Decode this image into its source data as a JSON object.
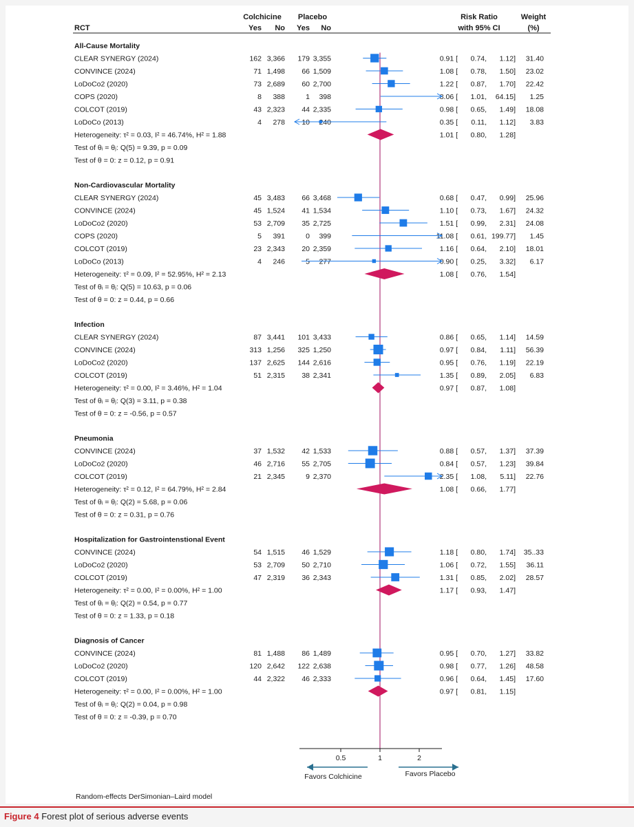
{
  "headers": {
    "rct": "RCT",
    "group_colchicine": "Colchicine",
    "group_placebo": "Placebo",
    "yes": "Yes",
    "no": "No",
    "rr_line1": "Risk Ratio",
    "rr_line2": "with 95% CI",
    "weight_line1": "Weight",
    "weight_line2": "(%)"
  },
  "figure_caption": {
    "label": "Figure 4",
    "text": "Forest plot of serious adverse events"
  },
  "model_note": "Random-effects DerSimonian–Laird model",
  "colors": {
    "study_marker": "#1f7ce8",
    "pooled_diamond": "#d0195e",
    "null_line": "#b0377a",
    "direction_arrow": "#2a7090",
    "caption_accent": "#c8242c"
  },
  "chart_data": {
    "type": "forest",
    "x_scale": "log",
    "xlim": [
      0.37,
      3.1
    ],
    "x_ticks": [
      {
        "value": 0.5,
        "label": "0.5"
      },
      {
        "value": 1,
        "label": "1"
      },
      {
        "value": 2,
        "label": "2"
      }
    ],
    "null_value": 1,
    "favors_left": "Favors Colchicine",
    "favors_right": "Favors Placebo",
    "sections": [
      {
        "title": "All-Cause Mortality",
        "studies": [
          {
            "name": "CLEAR SYNERGY (2024)",
            "c_yes": "162",
            "c_no": "3,366",
            "p_yes": "179",
            "p_no": "3,355",
            "rr": 0.91,
            "lo": 0.74,
            "hi": 1.12,
            "rr_text": "0.91",
            "lo_text": "0.74,",
            "hi_text": "1.12]",
            "weight": "31.40"
          },
          {
            "name": "CONVINCE (2024)",
            "c_yes": "71",
            "c_no": "1,498",
            "p_yes": "66",
            "p_no": "1,509",
            "rr": 1.08,
            "lo": 0.78,
            "hi": 1.5,
            "rr_text": "1.08",
            "lo_text": "0.78,",
            "hi_text": "1.50]",
            "weight": "23.02"
          },
          {
            "name": "LoDoCo2 (2020)",
            "c_yes": "73",
            "c_no": "2,689",
            "p_yes": "60",
            "p_no": "2,700",
            "rr": 1.22,
            "lo": 0.87,
            "hi": 1.7,
            "rr_text": "1.22",
            "lo_text": "0.87,",
            "hi_text": "1.70]",
            "weight": "22.42"
          },
          {
            "name": "COPS (2020)",
            "c_yes": "8",
            "c_no": "388",
            "p_yes": "1",
            "p_no": "398",
            "rr": 8.06,
            "lo": 1.01,
            "hi": 64.15,
            "rr_text": "8.06",
            "lo_text": "1.01,",
            "hi_text": "64.15]",
            "weight": "1.25"
          },
          {
            "name": "COLCOT (2019)",
            "c_yes": "43",
            "c_no": "2,323",
            "p_yes": "44",
            "p_no": "2,335",
            "rr": 0.98,
            "lo": 0.65,
            "hi": 1.49,
            "rr_text": "0.98",
            "lo_text": "0.65,",
            "hi_text": "1.49]",
            "weight": "18.08"
          },
          {
            "name": "LoDoCo (2013)",
            "c_yes": "4",
            "c_no": "278",
            "p_yes": "10",
            "p_no": "240",
            "rr": 0.35,
            "lo": 0.11,
            "hi": 1.12,
            "rr_text": "0.35",
            "lo_text": "0.11,",
            "hi_text": "1.12]",
            "weight": "3.83"
          }
        ],
        "pooled": {
          "rr": 1.01,
          "lo": 0.8,
          "hi": 1.28,
          "rr_text": "1.01",
          "lo_text": "0.80,",
          "hi_text": "1.28]"
        },
        "stats": [
          "Heterogeneity: τ² = 0.03, I² = 46.74%, H² = 1.88",
          "Test of θᵢ = θⱼ: Q(5) = 9.39, p = 0.09",
          "Test of θ = 0: z = 0.12, p = 0.91"
        ]
      },
      {
        "title": "Non-Cardiovascular Mortality",
        "studies": [
          {
            "name": "CLEAR SYNERGY (2024)",
            "c_yes": "45",
            "c_no": "3,483",
            "p_yes": "66",
            "p_no": "3,468",
            "rr": 0.68,
            "lo": 0.47,
            "hi": 0.99,
            "rr_text": "0.68",
            "lo_text": "0.47,",
            "hi_text": "0.99]",
            "weight": "25.96"
          },
          {
            "name": "CONVINCE (2024)",
            "c_yes": "45",
            "c_no": "1,524",
            "p_yes": "41",
            "p_no": "1,534",
            "rr": 1.1,
            "lo": 0.73,
            "hi": 1.67,
            "rr_text": "1.10",
            "lo_text": "0.73,",
            "hi_text": "1.67]",
            "weight": "24.32"
          },
          {
            "name": "LoDoCo2 (2020)",
            "c_yes": "53",
            "c_no": "2,709",
            "p_yes": "35",
            "p_no": "2,725",
            "rr": 1.51,
            "lo": 0.99,
            "hi": 2.31,
            "rr_text": "1.51",
            "lo_text": "0.99,",
            "hi_text": "2.31]",
            "weight": "24.08"
          },
          {
            "name": "COPS (2020)",
            "c_yes": "5",
            "c_no": "391",
            "p_yes": "0",
            "p_no": "399",
            "rr": 11.08,
            "lo": 0.61,
            "hi": 199.77,
            "rr_text": "11.08",
            "lo_text": "0.61,",
            "hi_text": "199.77]",
            "weight": "1.45"
          },
          {
            "name": "COLCOT (2019)",
            "c_yes": "23",
            "c_no": "2,343",
            "p_yes": "20",
            "p_no": "2,359",
            "rr": 1.16,
            "lo": 0.64,
            "hi": 2.1,
            "rr_text": "1.16",
            "lo_text": "0.64,",
            "hi_text": "2.10]",
            "weight": "18.01"
          },
          {
            "name": "LoDoCo (2013)",
            "c_yes": "4",
            "c_no": "246",
            "p_yes": "5",
            "p_no": "277",
            "rr": 0.9,
            "lo": 0.25,
            "hi": 3.32,
            "rr_text": "0.90",
            "lo_text": "0.25,",
            "hi_text": "3.32]",
            "weight": "6.17"
          }
        ],
        "pooled": {
          "rr": 1.08,
          "lo": 0.76,
          "hi": 1.54,
          "rr_text": "1.08",
          "lo_text": "0.76,",
          "hi_text": "1.54]"
        },
        "stats": [
          "Heterogeneity: τ² = 0.09, I² = 52.95%, H² = 2.13",
          "Test of θᵢ = θⱼ: Q(5) = 10.63, p = 0.06",
          "Test of θ = 0: z = 0.44, p = 0.66"
        ]
      },
      {
        "title": "Infection",
        "studies": [
          {
            "name": "CLEAR SYNERGY (2024)",
            "c_yes": "87",
            "c_no": "3,441",
            "p_yes": "101",
            "p_no": "3,433",
            "rr": 0.86,
            "lo": 0.65,
            "hi": 1.14,
            "rr_text": "0.86",
            "lo_text": "0.65,",
            "hi_text": "1.14]",
            "weight": "14.59"
          },
          {
            "name": "CONVINCE (2024)",
            "c_yes": "313",
            "c_no": "1,256",
            "p_yes": "325",
            "p_no": "1,250",
            "rr": 0.97,
            "lo": 0.84,
            "hi": 1.11,
            "rr_text": "0.97",
            "lo_text": "0.84,",
            "hi_text": "1.11]",
            "weight": "56.39"
          },
          {
            "name": "LoDoCo2 (2020)",
            "c_yes": "137",
            "c_no": "2,625",
            "p_yes": "144",
            "p_no": "2,616",
            "rr": 0.95,
            "lo": 0.76,
            "hi": 1.19,
            "rr_text": "0.95",
            "lo_text": "0.76,",
            "hi_text": "1.19]",
            "weight": "22.19"
          },
          {
            "name": "COLCOT (2019)",
            "c_yes": "51",
            "c_no": "2,315",
            "p_yes": "38",
            "p_no": "2,341",
            "rr": 1.35,
            "lo": 0.89,
            "hi": 2.05,
            "rr_text": "1.35",
            "lo_text": "0.89,",
            "hi_text": "2.05]",
            "weight": "6.83"
          }
        ],
        "pooled": {
          "rr": 0.97,
          "lo": 0.87,
          "hi": 1.08,
          "rr_text": "0.97",
          "lo_text": "0.87,",
          "hi_text": "1.08]"
        },
        "stats": [
          "Heterogeneity: τ² = 0.00, I² = 3.46%, H² = 1.04",
          "Test of θᵢ = θⱼ: Q(3) = 3.11, p = 0.38",
          "Test of θ = 0: z = -0.56, p = 0.57"
        ]
      },
      {
        "title": "Pneumonia",
        "studies": [
          {
            "name": "CONVINCE (2024)",
            "c_yes": "37",
            "c_no": "1,532",
            "p_yes": "42",
            "p_no": "1,533",
            "rr": 0.88,
            "lo": 0.57,
            "hi": 1.37,
            "rr_text": "0.88",
            "lo_text": "0.57,",
            "hi_text": "1.37]",
            "weight": "37.39"
          },
          {
            "name": "LoDoCo2 (2020)",
            "c_yes": "46",
            "c_no": "2,716",
            "p_yes": "55",
            "p_no": "2,705",
            "rr": 0.84,
            "lo": 0.57,
            "hi": 1.23,
            "rr_text": "0.84",
            "lo_text": "0.57,",
            "hi_text": "1.23]",
            "weight": "39.84"
          },
          {
            "name": "COLCOT (2019)",
            "c_yes": "21",
            "c_no": "2,345",
            "p_yes": "9",
            "p_no": "2,370",
            "rr": 2.35,
            "lo": 1.08,
            "hi": 5.11,
            "rr_text": "2.35",
            "lo_text": "1.08,",
            "hi_text": "5.11]",
            "weight": "22.76"
          }
        ],
        "pooled": {
          "rr": 1.08,
          "lo": 0.66,
          "hi": 1.77,
          "rr_text": "1.08",
          "lo_text": "0.66,",
          "hi_text": "1.77]"
        },
        "stats": [
          "Heterogeneity: τ² = 0.12, I² = 64.79%, H² = 2.84",
          "Test of θᵢ = θⱼ: Q(2) = 5.68, p = 0.06",
          "Test of θ = 0: z = 0.31, p = 0.76"
        ]
      },
      {
        "title": "Hospitalization for Gastrointenstional Event",
        "studies": [
          {
            "name": "CONVINCE (2024)",
            "c_yes": "54",
            "c_no": "1,515",
            "p_yes": "46",
            "p_no": "1,529",
            "rr": 1.18,
            "lo": 0.8,
            "hi": 1.74,
            "rr_text": "1.18",
            "lo_text": "0.80,",
            "hi_text": "1.74]",
            "weight": "35..33"
          },
          {
            "name": "LoDoCo2 (2020)",
            "c_yes": "53",
            "c_no": "2,709",
            "p_yes": "50",
            "p_no": "2,710",
            "rr": 1.06,
            "lo": 0.72,
            "hi": 1.55,
            "rr_text": "1.06",
            "lo_text": "0.72,",
            "hi_text": "1.55]",
            "weight": "36.11"
          },
          {
            "name": "COLCOT (2019)",
            "c_yes": "47",
            "c_no": "2,319",
            "p_yes": "36",
            "p_no": "2,343",
            "rr": 1.31,
            "lo": 0.85,
            "hi": 2.02,
            "rr_text": "1.31",
            "lo_text": "0.85,",
            "hi_text": "2.02]",
            "weight": "28.57"
          }
        ],
        "pooled": {
          "rr": 1.17,
          "lo": 0.93,
          "hi": 1.47,
          "rr_text": "1.17",
          "lo_text": "0.93,",
          "hi_text": "1.47]"
        },
        "stats": [
          "Heterogeneity: τ² = 0.00, I² = 0.00%, H² = 1.00",
          "Test of θᵢ = θⱼ: Q(2) = 0.54, p = 0.77",
          "Test of θ = 0: z = 1.33, p = 0.18"
        ]
      },
      {
        "title": "Diagnosis of Cancer",
        "studies": [
          {
            "name": "CONVINCE (2024)",
            "c_yes": "81",
            "c_no": "1,488",
            "p_yes": "86",
            "p_no": "1,489",
            "rr": 0.95,
            "lo": 0.7,
            "hi": 1.27,
            "rr_text": "0.95",
            "lo_text": "0.70,",
            "hi_text": "1.27]",
            "weight": "33.82"
          },
          {
            "name": "LoDoCo2 (2020)",
            "c_yes": "120",
            "c_no": "2,642",
            "p_yes": "122",
            "p_no": "2,638",
            "rr": 0.98,
            "lo": 0.77,
            "hi": 1.26,
            "rr_text": "0.98",
            "lo_text": "0.77,",
            "hi_text": "1.26]",
            "weight": "48.58"
          },
          {
            "name": "COLCOT (2019)",
            "c_yes": "44",
            "c_no": "2,322",
            "p_yes": "46",
            "p_no": "2,333",
            "rr": 0.96,
            "lo": 0.64,
            "hi": 1.45,
            "rr_text": "0.96",
            "lo_text": "0.64,",
            "hi_text": "1.45]",
            "weight": "17.60"
          }
        ],
        "pooled": {
          "rr": 0.97,
          "lo": 0.81,
          "hi": 1.15,
          "rr_text": "0.97",
          "lo_text": "0.81,",
          "hi_text": "1.15]"
        },
        "stats": [
          "Heterogeneity: τ² = 0.00, I² = 0.00%, H² = 1.00",
          "Test of θᵢ = θⱼ: Q(2) = 0.04, p = 0.98",
          "Test of θ = 0: z = -0.39, p = 0.70"
        ]
      }
    ]
  }
}
